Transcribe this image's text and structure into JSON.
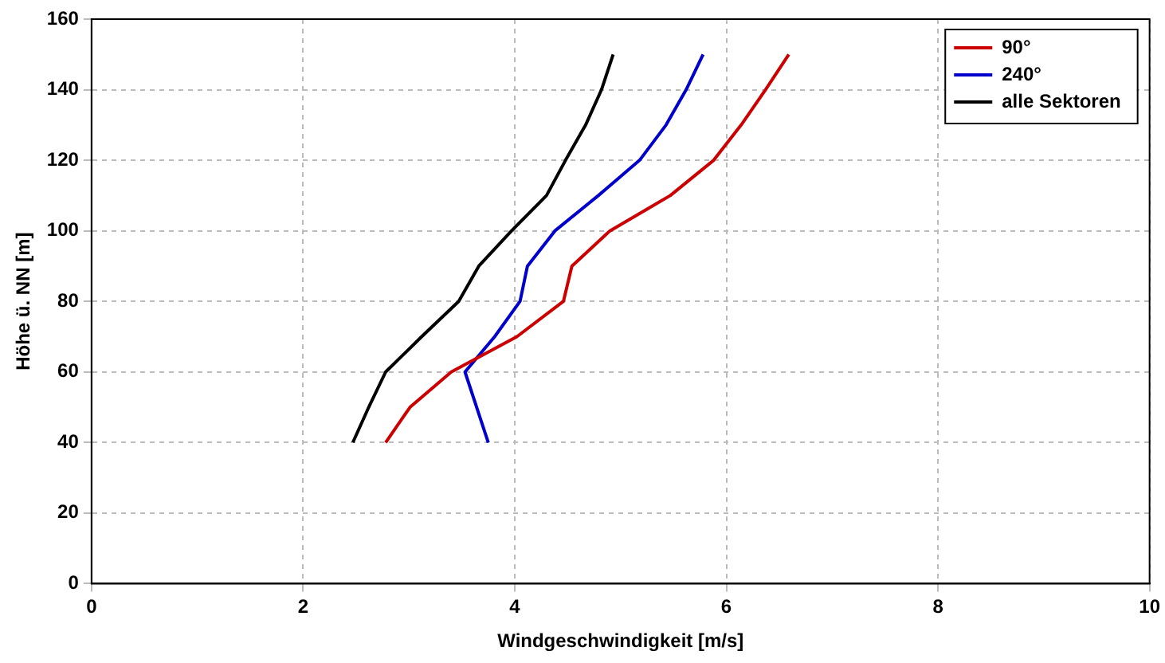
{
  "chart_data": {
    "type": "line",
    "xlabel": "Windgeschwindigkeit [m/s]",
    "ylabel": "Höhe ü. NN [m]",
    "xlim": [
      0,
      10
    ],
    "xticks": [
      0,
      2,
      4,
      6,
      8,
      10
    ],
    "ylim": [
      0,
      160
    ],
    "yticks": [
      0,
      20,
      40,
      60,
      80,
      100,
      120,
      140,
      160
    ],
    "grid": true,
    "legend": "top right",
    "marker": "none",
    "line_style": "solid",
    "series": [
      {
        "name": "90°",
        "color": "#cc0000",
        "x": [
          2.78,
          3.01,
          3.4,
          4.02,
          4.46,
          4.54,
          4.9,
          5.47,
          5.88,
          6.14,
          6.37,
          6.59
        ],
        "values": [
          40,
          50,
          60,
          70,
          80,
          90,
          100,
          110,
          120,
          130,
          140,
          150
        ]
      },
      {
        "name": "240°",
        "color": "#0000cc",
        "x": [
          3.75,
          3.64,
          3.53,
          3.81,
          4.05,
          4.12,
          4.38,
          4.79,
          5.18,
          5.43,
          5.62,
          5.78
        ],
        "values": [
          40,
          50,
          60,
          70,
          80,
          90,
          100,
          110,
          120,
          130,
          140,
          150
        ]
      },
      {
        "name": "alle Sektoren",
        "color": "#000000",
        "x": [
          2.47,
          2.62,
          2.78,
          3.12,
          3.47,
          3.66,
          3.97,
          4.3,
          4.48,
          4.67,
          4.82,
          4.93
        ],
        "values": [
          40,
          50,
          60,
          70,
          80,
          90,
          100,
          110,
          120,
          130,
          140,
          150
        ]
      }
    ]
  }
}
